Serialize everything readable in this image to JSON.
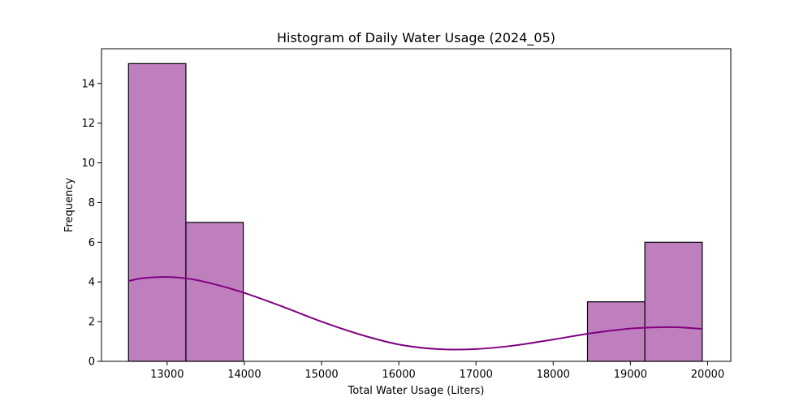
{
  "chart_data": {
    "type": "bar",
    "title": "Histogram of Daily Water Usage (2024_05)",
    "xlabel": "Total Water Usage (Liters)",
    "ylabel": "Frequency",
    "xlim": [
      12150,
      20300
    ],
    "ylim": [
      0,
      15.75
    ],
    "xticks": [
      13000,
      14000,
      15000,
      16000,
      17000,
      18000,
      19000,
      20000
    ],
    "yticks": [
      0,
      2,
      4,
      6,
      8,
      10,
      12,
      14
    ],
    "bins": [
      {
        "x0": 12500,
        "x1": 13243,
        "count": 15
      },
      {
        "x0": 13243,
        "x1": 13986,
        "count": 7
      },
      {
        "x0": 13986,
        "x1": 14729,
        "count": 0
      },
      {
        "x0": 14729,
        "x1": 15472,
        "count": 0
      },
      {
        "x0": 15472,
        "x1": 16215,
        "count": 0
      },
      {
        "x0": 16215,
        "x1": 16958,
        "count": 0
      },
      {
        "x0": 16958,
        "x1": 17701,
        "count": 0
      },
      {
        "x0": 17701,
        "x1": 18444,
        "count": 0
      },
      {
        "x0": 18444,
        "x1": 19187,
        "count": 3
      },
      {
        "x0": 19187,
        "x1": 19930,
        "count": 6
      }
    ],
    "kde": {
      "x": [
        12500,
        12700,
        13000,
        13300,
        13600,
        14000,
        14500,
        15000,
        15500,
        16000,
        16500,
        17000,
        17500,
        18000,
        18500,
        19000,
        19400,
        19700,
        19930
      ],
      "y": [
        4.05,
        4.2,
        4.25,
        4.15,
        3.9,
        3.45,
        2.75,
        2.0,
        1.35,
        0.85,
        0.62,
        0.62,
        0.8,
        1.1,
        1.42,
        1.65,
        1.72,
        1.7,
        1.63
      ]
    },
    "bar_fill": "#bf7fbf",
    "bar_edge": "#000000",
    "kde_color": "#800080",
    "grid": false,
    "legend": "none"
  }
}
